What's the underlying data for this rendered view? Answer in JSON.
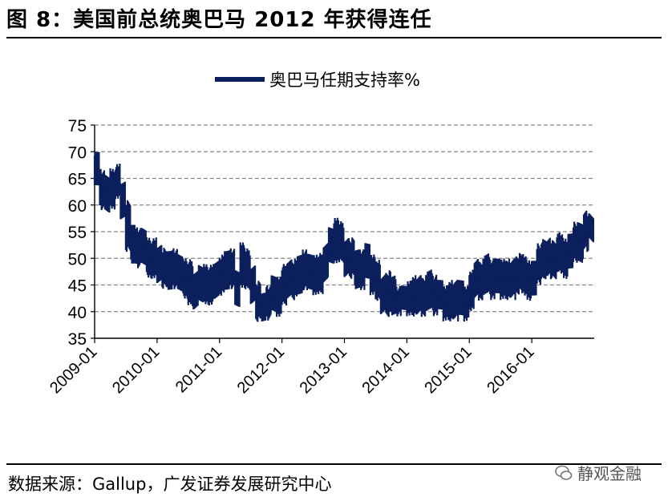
{
  "figure": {
    "title": "图 8：美国前总统奥巴马 2012 年获得连任",
    "source": "数据来源：Gallup，广发证券发展研究中心",
    "watermark": "静观金融"
  },
  "colors": {
    "series": "#0b1f5c",
    "grid": "#888888",
    "axis": "#000000"
  },
  "chart_data": {
    "type": "line",
    "title": "",
    "xlabel": "",
    "ylabel": "",
    "legend_position": "top-center",
    "grid": true,
    "ylim": [
      35,
      75
    ],
    "yticks": [
      35,
      40,
      45,
      50,
      55,
      60,
      65,
      70,
      75
    ],
    "xlim": [
      "2009-01",
      "2016-12"
    ],
    "xticks": [
      "2009-01",
      "2010-01",
      "2011-01",
      "2012-01",
      "2013-01",
      "2014-01",
      "2015-01",
      "2016-01"
    ],
    "series": [
      {
        "name": "奥巴马任期支持率%",
        "x": [
          "2009-01",
          "2009-02",
          "2009-03",
          "2009-04",
          "2009-05",
          "2009-06",
          "2009-07",
          "2009-08",
          "2009-09",
          "2009-10",
          "2009-11",
          "2009-12",
          "2010-01",
          "2010-02",
          "2010-03",
          "2010-04",
          "2010-05",
          "2010-06",
          "2010-07",
          "2010-08",
          "2010-09",
          "2010-10",
          "2010-11",
          "2010-12",
          "2011-01",
          "2011-02",
          "2011-03",
          "2011-04",
          "2011-05",
          "2011-06",
          "2011-07",
          "2011-08",
          "2011-09",
          "2011-10",
          "2011-11",
          "2011-12",
          "2012-01",
          "2012-02",
          "2012-03",
          "2012-04",
          "2012-05",
          "2012-06",
          "2012-07",
          "2012-08",
          "2012-09",
          "2012-10",
          "2012-11",
          "2012-12",
          "2013-01",
          "2013-02",
          "2013-03",
          "2013-04",
          "2013-05",
          "2013-06",
          "2013-07",
          "2013-08",
          "2013-09",
          "2013-10",
          "2013-11",
          "2013-12",
          "2014-01",
          "2014-02",
          "2014-03",
          "2014-04",
          "2014-05",
          "2014-06",
          "2014-07",
          "2014-08",
          "2014-09",
          "2014-10",
          "2014-11",
          "2014-12",
          "2015-01",
          "2015-02",
          "2015-03",
          "2015-04",
          "2015-05",
          "2015-06",
          "2015-07",
          "2015-08",
          "2015-09",
          "2015-10",
          "2015-11",
          "2015-12",
          "2016-01",
          "2016-02",
          "2016-03",
          "2016-04",
          "2016-05",
          "2016-06",
          "2016-07",
          "2016-08",
          "2016-09",
          "2016-10",
          "2016-11",
          "2016-12"
        ],
        "values": [
          67,
          63,
          62,
          63,
          65,
          61,
          56,
          53,
          52,
          52,
          50,
          50,
          49,
          48,
          48,
          48,
          47,
          46,
          46,
          44,
          45,
          45,
          45,
          46,
          47,
          48,
          48,
          44,
          49,
          48,
          45,
          42,
          40,
          41,
          43,
          43,
          45,
          46,
          46,
          47,
          48,
          47,
          47,
          47,
          49,
          52,
          53,
          53,
          50,
          50,
          48,
          48,
          49,
          47,
          46,
          43,
          44,
          43,
          41,
          41,
          42,
          43,
          43,
          43,
          44,
          43,
          42,
          41,
          42,
          42,
          42,
          41,
          44,
          46,
          46,
          47,
          46,
          46,
          46,
          46,
          46,
          47,
          47,
          46,
          47,
          49,
          50,
          50,
          50,
          51,
          50,
          52,
          53,
          53,
          55,
          57
        ],
        "range_low": [
          63,
          59,
          58,
          59,
          61,
          57,
          51,
          49,
          48,
          48,
          46,
          46,
          45,
          44,
          44,
          44,
          43,
          42,
          41,
          40,
          41,
          41,
          41,
          42,
          43,
          44,
          44,
          40,
          44,
          44,
          41,
          38,
          38,
          38,
          39,
          39,
          41,
          42,
          42,
          43,
          44,
          43,
          43,
          43,
          45,
          48,
          49,
          49,
          46,
          46,
          44,
          44,
          45,
          43,
          42,
          39,
          39,
          39,
          39,
          39,
          39,
          39,
          39,
          39,
          40,
          39,
          39,
          38,
          38,
          38,
          38,
          38,
          40,
          42,
          42,
          43,
          42,
          42,
          42,
          42,
          42,
          43,
          43,
          42,
          43,
          45,
          46,
          46,
          46,
          47,
          46,
          48,
          49,
          49,
          51,
          53
        ],
        "range_high": [
          70,
          67,
          66,
          67,
          68,
          65,
          61,
          57,
          56,
          56,
          54,
          54,
          53,
          52,
          52,
          52,
          51,
          50,
          50,
          48,
          49,
          49,
          49,
          50,
          51,
          52,
          52,
          48,
          53,
          52,
          49,
          46,
          44,
          45,
          47,
          47,
          49,
          50,
          50,
          51,
          52,
          51,
          51,
          51,
          53,
          56,
          58,
          57,
          54,
          54,
          52,
          52,
          53,
          51,
          50,
          47,
          48,
          47,
          45,
          45,
          46,
          47,
          47,
          47,
          48,
          47,
          46,
          45,
          46,
          46,
          46,
          45,
          48,
          50,
          50,
          51,
          50,
          50,
          50,
          50,
          50,
          51,
          51,
          50,
          51,
          53,
          54,
          54,
          54,
          55,
          54,
          56,
          57,
          57,
          59,
          59
        ]
      }
    ]
  }
}
